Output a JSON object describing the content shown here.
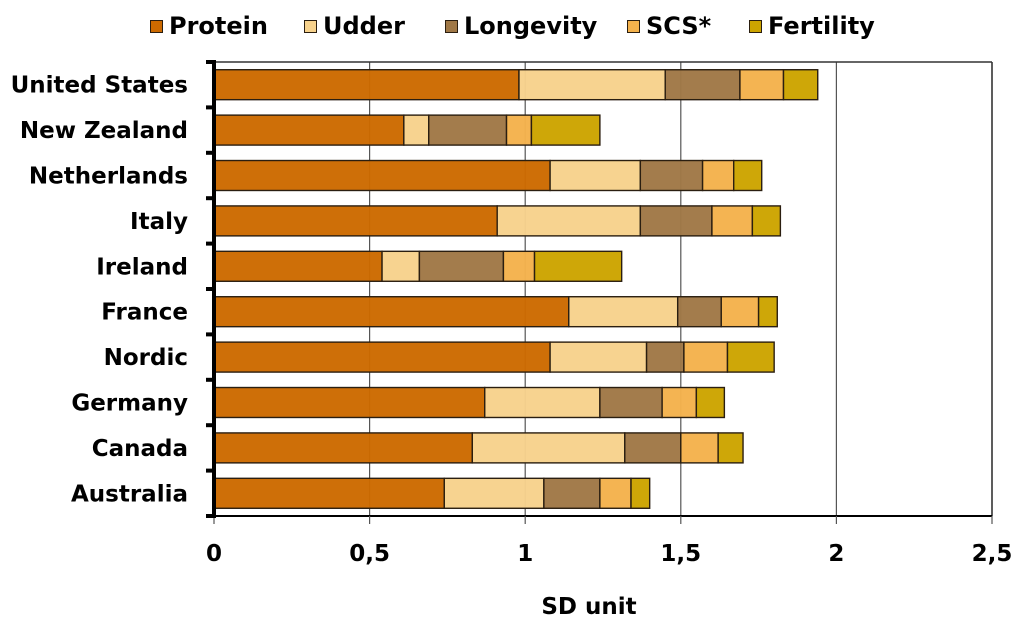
{
  "chart_data": {
    "type": "bar",
    "orientation": "horizontal",
    "stacked": true,
    "title": "",
    "xlabel": "SD unit",
    "ylabel": "",
    "xlim": [
      0,
      2.5
    ],
    "x_ticks": [
      0,
      0.5,
      1,
      1.5,
      2,
      2.5
    ],
    "x_tick_labels": [
      "0",
      "0,5",
      "1",
      "1,5",
      "2",
      "2,5"
    ],
    "grid": "vertical",
    "legend_position": "top",
    "categories": [
      "United States",
      "New Zealand",
      "Netherlands",
      "Italy",
      "Ireland",
      "France",
      "Nordic",
      "Germany",
      "Canada",
      "Australia"
    ],
    "series": [
      {
        "name": "Protein",
        "color": "#cc6a00",
        "values": [
          0.98,
          0.61,
          1.08,
          0.91,
          0.54,
          1.14,
          1.08,
          0.87,
          0.83,
          0.74
        ]
      },
      {
        "name": "Udder",
        "color": "#f7d28c",
        "values": [
          0.47,
          0.08,
          0.29,
          0.46,
          0.12,
          0.35,
          0.31,
          0.37,
          0.49,
          0.32
        ]
      },
      {
        "name": "Longevity",
        "color": "#a07846",
        "values": [
          0.24,
          0.25,
          0.2,
          0.23,
          0.27,
          0.14,
          0.12,
          0.2,
          0.18,
          0.18
        ]
      },
      {
        "name": "SCS*",
        "color": "#f4b24c",
        "values": [
          0.14,
          0.08,
          0.1,
          0.13,
          0.1,
          0.12,
          0.14,
          0.11,
          0.12,
          0.1
        ]
      },
      {
        "name": "Fertility",
        "color": "#cca400",
        "values": [
          0.11,
          0.22,
          0.09,
          0.09,
          0.28,
          0.06,
          0.15,
          0.09,
          0.08,
          0.06
        ]
      }
    ]
  }
}
